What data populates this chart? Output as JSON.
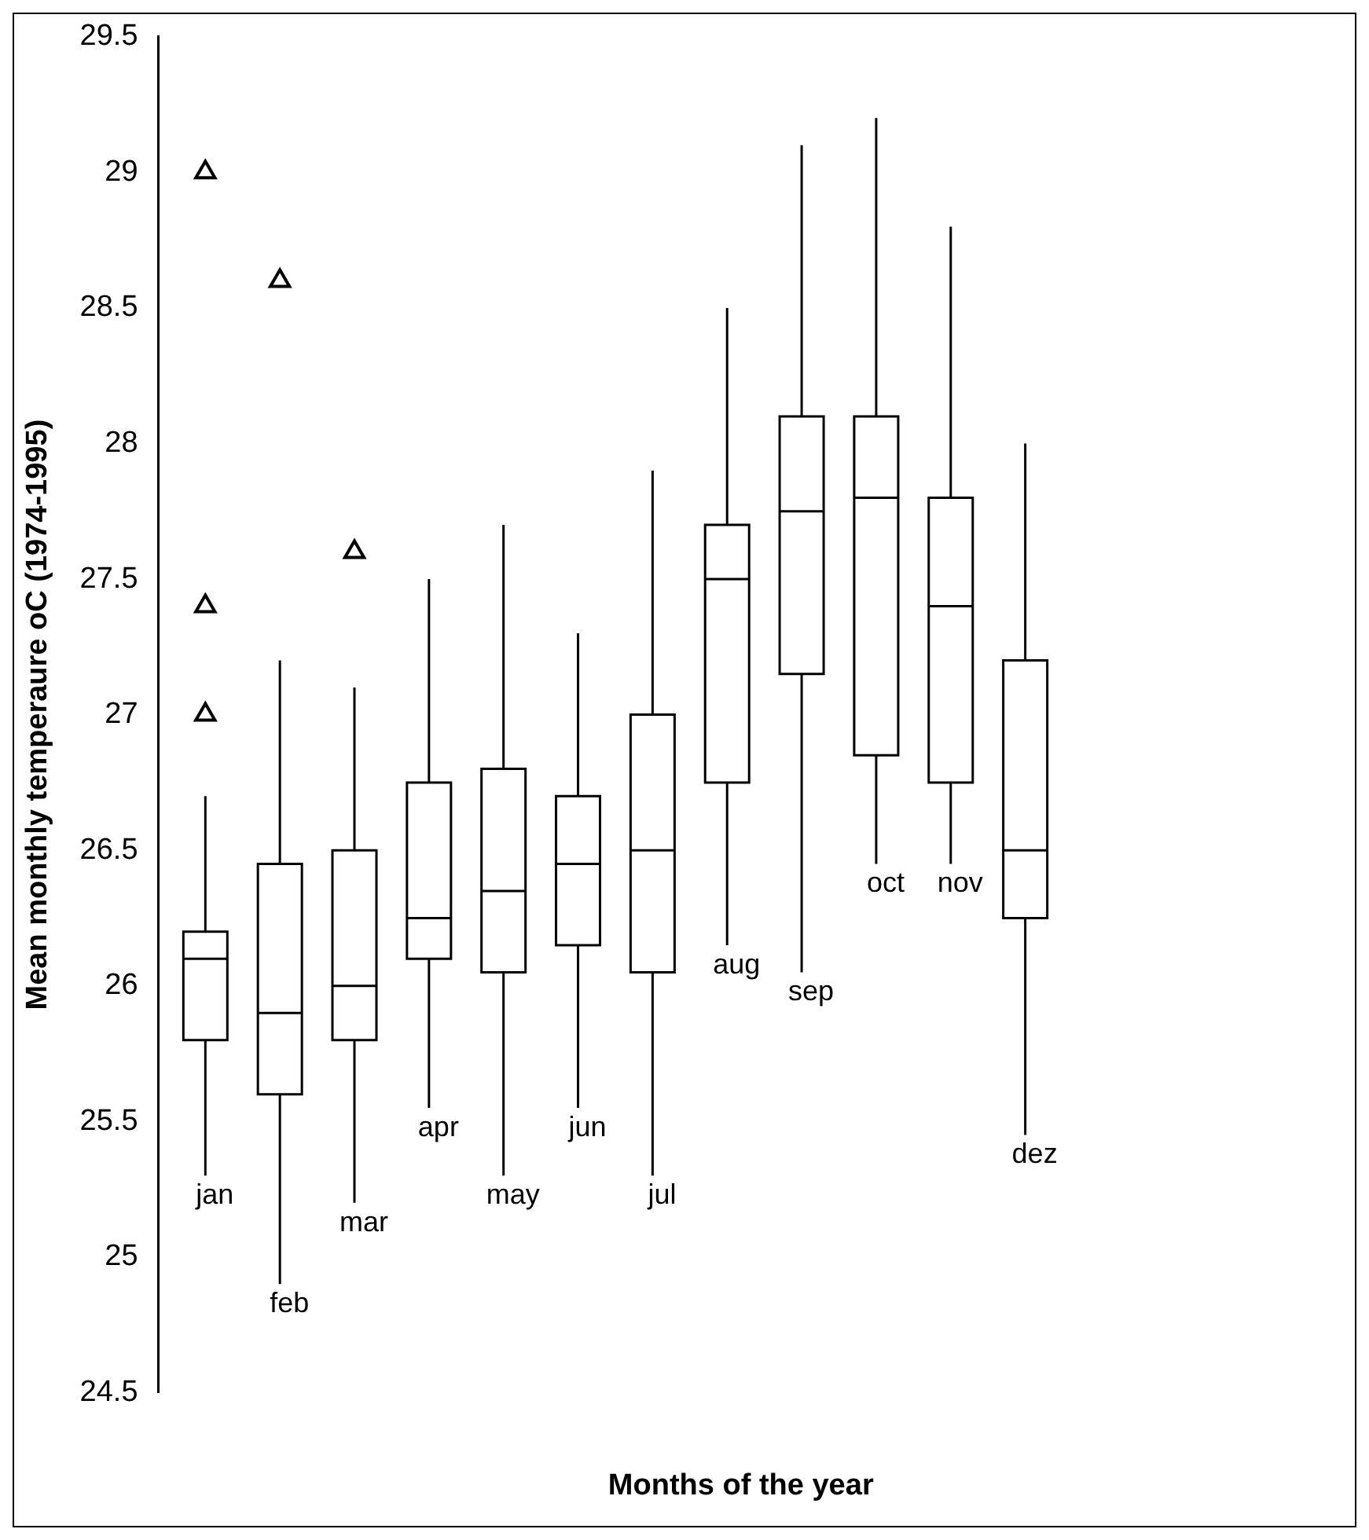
{
  "chart_data": {
    "type": "box",
    "ylabel": "Mean monthly temperaure oC (1974-1995)",
    "xlabel": "Months of the year",
    "categories": [
      "jan",
      "feb",
      "mar",
      "apr",
      "may",
      "jun",
      "jul",
      "aug",
      "sep",
      "oct",
      "nov",
      "dez"
    ],
    "color": "#000000",
    "boxes": [
      {
        "low": 25.3,
        "q1": 25.8,
        "median": 26.1,
        "q3": 26.2,
        "high": 26.7,
        "outliers": [
          29.0,
          27.4,
          27.0
        ]
      },
      {
        "low": 24.9,
        "q1": 25.6,
        "median": 25.9,
        "q3": 26.45,
        "high": 27.2,
        "outliers": [
          28.6
        ]
      },
      {
        "low": 25.2,
        "q1": 25.8,
        "median": 26.0,
        "q3": 26.5,
        "high": 27.1,
        "outliers": [
          27.6
        ]
      },
      {
        "low": 25.55,
        "q1": 26.1,
        "median": 26.25,
        "q3": 26.75,
        "high": 27.5
      },
      {
        "low": 25.3,
        "q1": 26.05,
        "median": 26.35,
        "q3": 26.8,
        "high": 27.7
      },
      {
        "low": 25.55,
        "q1": 26.15,
        "median": 26.45,
        "q3": 26.7,
        "high": 27.3
      },
      {
        "low": 25.3,
        "q1": 26.05,
        "median": 26.5,
        "q3": 27.0,
        "high": 27.9
      },
      {
        "low": 26.15,
        "q1": 26.75,
        "median": 27.5,
        "q3": 27.7,
        "high": 28.5
      },
      {
        "low": 26.05,
        "q1": 27.15,
        "median": 27.75,
        "q3": 28.1,
        "high": 29.1
      },
      {
        "low": 26.45,
        "q1": 26.85,
        "median": 27.8,
        "q3": 28.1,
        "high": 29.2
      },
      {
        "low": 26.45,
        "q1": 26.75,
        "median": 27.4,
        "q3": 27.8,
        "high": 28.8
      },
      {
        "low": 25.45,
        "q1": 26.25,
        "median": 26.5,
        "q3": 27.2,
        "high": 28.0
      }
    ],
    "ylim": [
      24.5,
      29.5
    ],
    "yticks": [
      24.5,
      25,
      25.5,
      26,
      26.5,
      27,
      27.5,
      28,
      28.5,
      29,
      29.5
    ],
    "grid": false,
    "marker": "triangle"
  }
}
